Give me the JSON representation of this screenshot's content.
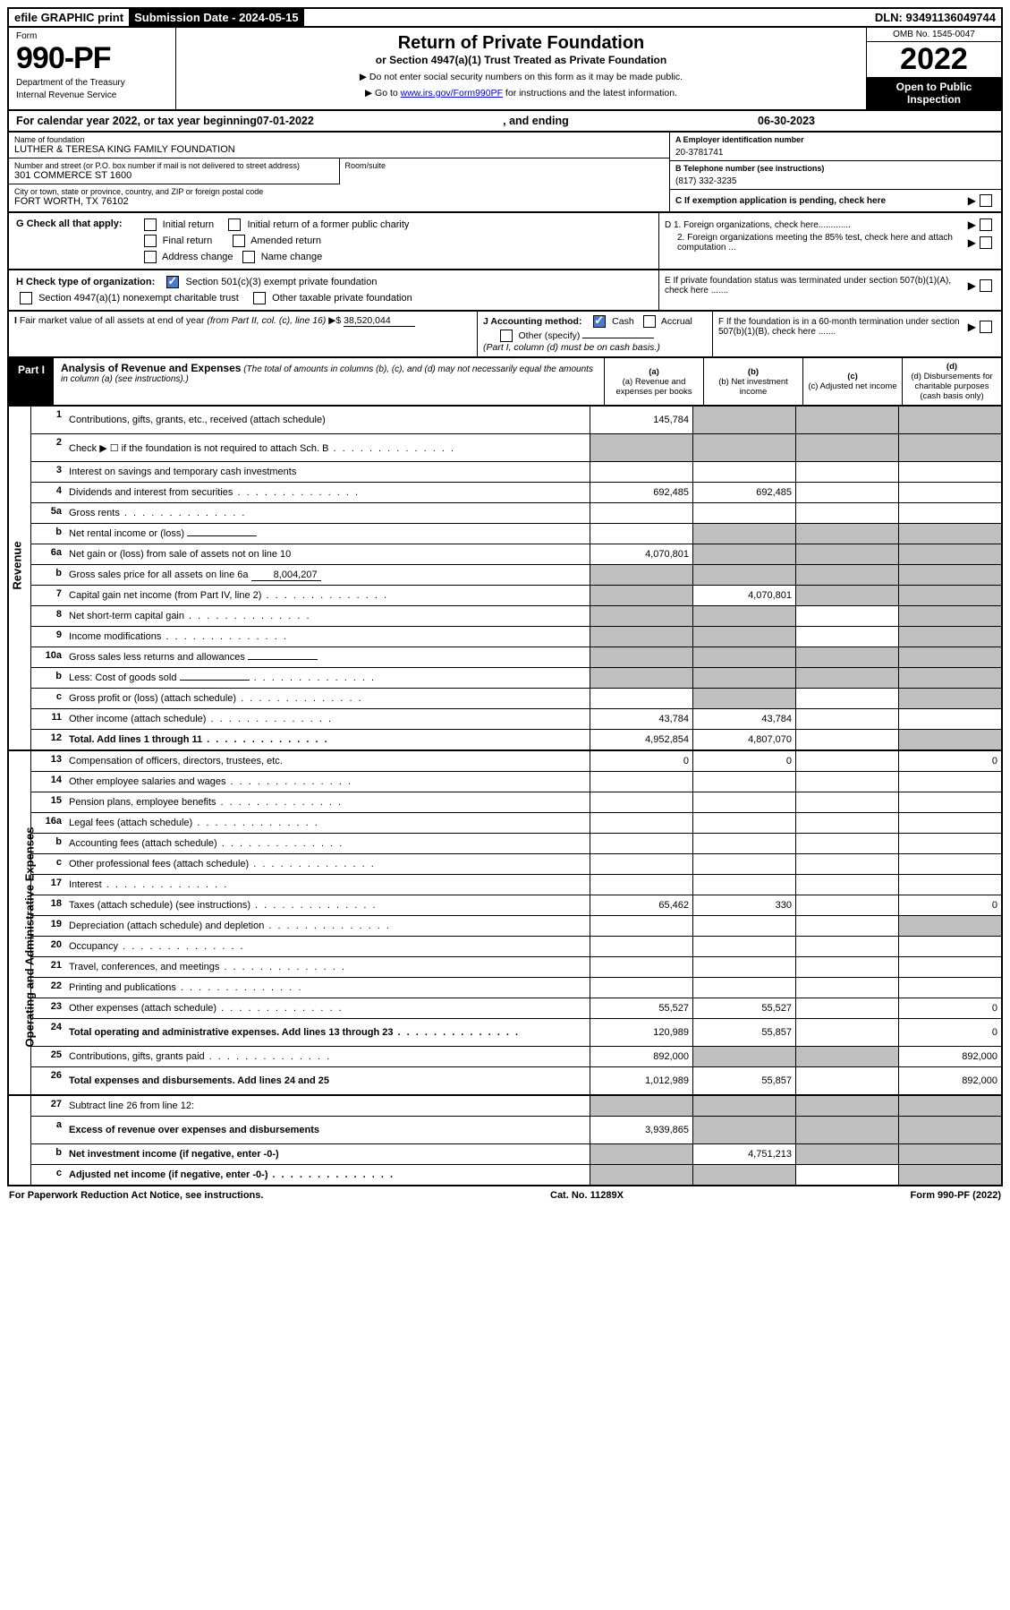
{
  "topbar": {
    "efile": "efile GRAPHIC print",
    "submission_label": "Submission Date - 2024-05-15",
    "dln": "DLN: 93491136049744"
  },
  "header": {
    "form": "Form",
    "form_number": "990-PF",
    "dept1": "Department of the Treasury",
    "dept2": "Internal Revenue Service",
    "title": "Return of Private Foundation",
    "subtitle": "or Section 4947(a)(1) Trust Treated as Private Foundation",
    "instr1": "▶ Do not enter social security numbers on this form as it may be made public.",
    "instr2_pre": "▶ Go to ",
    "instr2_link": "www.irs.gov/Form990PF",
    "instr2_post": " for instructions and the latest information.",
    "omb": "OMB No. 1545-0047",
    "year": "2022",
    "open": "Open to Public Inspection"
  },
  "calendar": {
    "pre": "For calendar year 2022, or tax year beginning ",
    "begin": "07-01-2022",
    "mid": ", and ending ",
    "end": "06-30-2023"
  },
  "info": {
    "name_label": "Name of foundation",
    "name": "LUTHER & TERESA KING FAMILY FOUNDATION",
    "addr_label": "Number and street (or P.O. box number if mail is not delivered to street address)",
    "addr": "301 COMMERCE ST 1600",
    "room_label": "Room/suite",
    "city_label": "City or town, state or province, country, and ZIP or foreign postal code",
    "city": "FORT WORTH, TX  76102",
    "ein_label": "A Employer identification number",
    "ein": "20-3781741",
    "tel_label": "B Telephone number (see instructions)",
    "tel": "(817) 332-3235",
    "c_label": "C If exemption application is pending, check here",
    "d1": "D 1. Foreign organizations, check here.............",
    "d2": "2. Foreign organizations meeting the 85% test, check here and attach computation ...",
    "e_label": "E If private foundation status was terminated under section 507(b)(1)(A), check here .......",
    "f_label": "F If the foundation is in a 60-month termination under section 507(b)(1)(B), check here ......."
  },
  "g": {
    "label": "G Check all that apply:",
    "initial": "Initial return",
    "initial_former": "Initial return of a former public charity",
    "final": "Final return",
    "amended": "Amended return",
    "address": "Address change",
    "name": "Name change"
  },
  "h": {
    "label": "H Check type of organization:",
    "sec501": "Section 501(c)(3) exempt private foundation",
    "sec4947": "Section 4947(a)(1) nonexempt charitable trust",
    "other_taxable": "Other taxable private foundation"
  },
  "i": {
    "label": "I Fair market value of all assets at end of year (from Part II, col. (c), line 16) ▶$",
    "value": "38,520,044"
  },
  "j": {
    "label": "J Accounting method:",
    "cash": "Cash",
    "accrual": "Accrual",
    "other": "Other (specify)",
    "note": "(Part I, column (d) must be on cash basis.)"
  },
  "part1": {
    "label": "Part I",
    "title": "Analysis of Revenue and Expenses",
    "desc": "(The total of amounts in columns (b), (c), and (d) may not necessarily equal the amounts in column (a) (see instructions).)",
    "col_a": "(a) Revenue and expenses per books",
    "col_b": "(b) Net investment income",
    "col_c": "(c) Adjusted net income",
    "col_d": "(d) Disbursements for charitable purposes (cash basis only)"
  },
  "sides": {
    "revenue": "Revenue",
    "expenses": "Operating and Administrative Expenses"
  },
  "rows": [
    {
      "n": "1",
      "d": "Contributions, gifts, grants, etc., received (attach schedule)",
      "a": "145,784",
      "bs": true,
      "cs": true,
      "ds": true,
      "tall": true
    },
    {
      "n": "2",
      "d": "Check ▶ ☐ if the foundation is not required to attach Sch. B",
      "nob": true,
      "noc": true,
      "nod": true,
      "noa": true,
      "tall": true,
      "dots": true
    },
    {
      "n": "3",
      "d": "Interest on savings and temporary cash investments"
    },
    {
      "n": "4",
      "d": "Dividends and interest from securities",
      "a": "692,485",
      "b": "692,485",
      "dots": true
    },
    {
      "n": "5a",
      "d": "Gross rents",
      "dots": true
    },
    {
      "n": "b",
      "d": "Net rental income or (loss)",
      "bs": true,
      "cs": true,
      "ds": true,
      "inline": true
    },
    {
      "n": "6a",
      "d": "Net gain or (loss) from sale of assets not on line 10",
      "a": "4,070,801",
      "bs": true,
      "cs": true,
      "ds": true
    },
    {
      "n": "b",
      "d": "Gross sales price for all assets on line 6a",
      "bs": true,
      "cs": true,
      "ds": true,
      "as": true,
      "inline": true,
      "inlineval": "8,004,207"
    },
    {
      "n": "7",
      "d": "Capital gain net income (from Part IV, line 2)",
      "b": "4,070,801",
      "as": true,
      "cs": true,
      "ds": true,
      "dots": true
    },
    {
      "n": "8",
      "d": "Net short-term capital gain",
      "as": true,
      "bs": true,
      "ds": true,
      "dots": true
    },
    {
      "n": "9",
      "d": "Income modifications",
      "as": true,
      "bs": true,
      "ds": true,
      "dots": true
    },
    {
      "n": "10a",
      "d": "Gross sales less returns and allowances",
      "bs": true,
      "cs": true,
      "ds": true,
      "as": true,
      "inline": true
    },
    {
      "n": "b",
      "d": "Less: Cost of goods sold",
      "bs": true,
      "cs": true,
      "ds": true,
      "as": true,
      "inline": true,
      "dots": true
    },
    {
      "n": "c",
      "d": "Gross profit or (loss) (attach schedule)",
      "bs": true,
      "ds": true,
      "dots": true
    },
    {
      "n": "11",
      "d": "Other income (attach schedule)",
      "a": "43,784",
      "b": "43,784",
      "dots": true
    },
    {
      "n": "12",
      "d": "Total. Add lines 1 through 11",
      "a": "4,952,854",
      "b": "4,807,070",
      "bold": true,
      "ds": true,
      "dots": true
    }
  ],
  "rows2": [
    {
      "n": "13",
      "d": "Compensation of officers, directors, trustees, etc.",
      "a": "0",
      "b": "0",
      "dval": "0"
    },
    {
      "n": "14",
      "d": "Other employee salaries and wages",
      "dots": true
    },
    {
      "n": "15",
      "d": "Pension plans, employee benefits",
      "dots": true
    },
    {
      "n": "16a",
      "d": "Legal fees (attach schedule)",
      "dots": true
    },
    {
      "n": "b",
      "d": "Accounting fees (attach schedule)",
      "dots": true
    },
    {
      "n": "c",
      "d": "Other professional fees (attach schedule)",
      "dots": true
    },
    {
      "n": "17",
      "d": "Interest",
      "dots": true
    },
    {
      "n": "18",
      "d": "Taxes (attach schedule) (see instructions)",
      "a": "65,462",
      "b": "330",
      "dval": "0",
      "dots": true
    },
    {
      "n": "19",
      "d": "Depreciation (attach schedule) and depletion",
      "ds": true,
      "dots": true
    },
    {
      "n": "20",
      "d": "Occupancy",
      "dots": true
    },
    {
      "n": "21",
      "d": "Travel, conferences, and meetings",
      "dots": true
    },
    {
      "n": "22",
      "d": "Printing and publications",
      "dots": true
    },
    {
      "n": "23",
      "d": "Other expenses (attach schedule)",
      "a": "55,527",
      "b": "55,527",
      "dval": "0",
      "dots": true
    },
    {
      "n": "24",
      "d": "Total operating and administrative expenses. Add lines 13 through 23",
      "a": "120,989",
      "b": "55,857",
      "dval": "0",
      "bold": true,
      "tall": true,
      "dots": true
    },
    {
      "n": "25",
      "d": "Contributions, gifts, grants paid",
      "a": "892,000",
      "bs": true,
      "cs": true,
      "dval": "892,000",
      "dots": true
    },
    {
      "n": "26",
      "d": "Total expenses and disbursements. Add lines 24 and 25",
      "a": "1,012,989",
      "b": "55,857",
      "dval": "892,000",
      "bold": true,
      "tall": true
    }
  ],
  "rows3": [
    {
      "n": "27",
      "d": "Subtract line 26 from line 12:",
      "as": true,
      "bs": true,
      "cs": true,
      "ds": true
    },
    {
      "n": "a",
      "d": "Excess of revenue over expenses and disbursements",
      "a": "3,939,865",
      "bs": true,
      "cs": true,
      "ds": true,
      "bold": true,
      "tall": true
    },
    {
      "n": "b",
      "d": "Net investment income (if negative, enter -0-)",
      "b": "4,751,213",
      "as": true,
      "cs": true,
      "ds": true,
      "bold": true
    },
    {
      "n": "c",
      "d": "Adjusted net income (if negative, enter -0-)",
      "as": true,
      "bs": true,
      "ds": true,
      "bold": true,
      "dots": true
    }
  ],
  "footer": {
    "left": "For Paperwork Reduction Act Notice, see instructions.",
    "mid": "Cat. No. 11289X",
    "right": "Form 990-PF (2022)"
  }
}
